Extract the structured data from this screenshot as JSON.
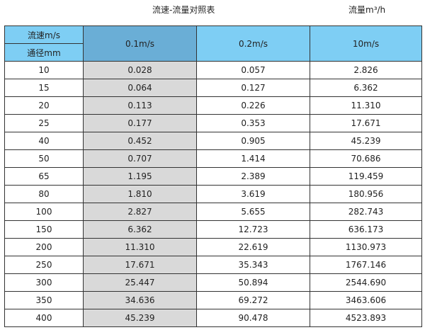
{
  "title": "流速-流量对照表",
  "unit": "流量m³/h",
  "header": {
    "velocity_label": "流速m/s",
    "diameter_label": "通径mm",
    "columns": [
      "0.1m/s",
      "0.2m/s",
      "10m/s"
    ]
  },
  "colors": {
    "header": "#7ecef4",
    "selected_header": "#6aaed6",
    "selected_column": "#d9d9d9"
  },
  "rows": [
    [
      "10",
      "0.028",
      "0.057",
      "2.826"
    ],
    [
      "15",
      "0.064",
      "0.127",
      "6.362"
    ],
    [
      "20",
      "0.113",
      "0.226",
      "11.310"
    ],
    [
      "25",
      "0.177",
      "0.353",
      "17.671"
    ],
    [
      "40",
      "0.452",
      "0.905",
      "45.239"
    ],
    [
      "50",
      "0.707",
      "1.414",
      "70.686"
    ],
    [
      "65",
      "1.195",
      "2.389",
      "119.459"
    ],
    [
      "80",
      "1.810",
      "3.619",
      "180.956"
    ],
    [
      "100",
      "2.827",
      "5.655",
      "282.743"
    ],
    [
      "150",
      "6.362",
      "12.723",
      "636.173"
    ],
    [
      "200",
      "11.310",
      "22.619",
      "1130.973"
    ],
    [
      "250",
      "17.671",
      "35.343",
      "1767.146"
    ],
    [
      "300",
      "25.447",
      "50.894",
      "2544.690"
    ],
    [
      "350",
      "34.636",
      "69.272",
      "3463.606"
    ],
    [
      "400",
      "45.239",
      "90.478",
      "4523.893"
    ]
  ]
}
